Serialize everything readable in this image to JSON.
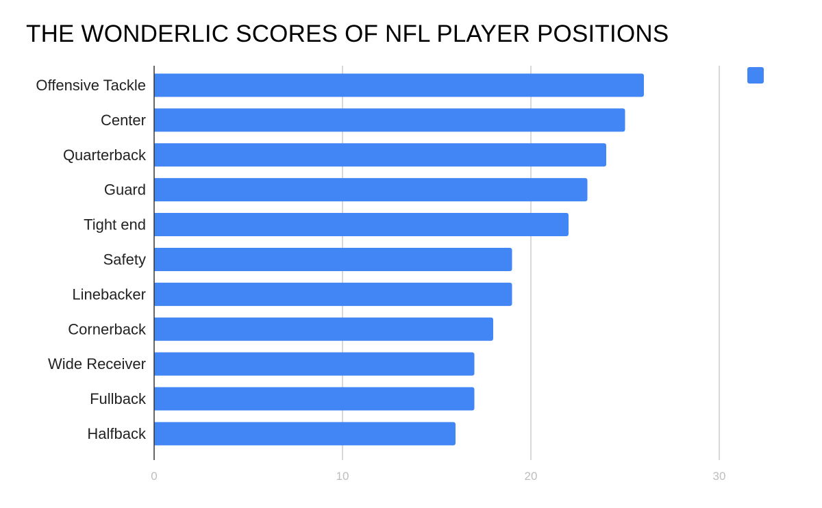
{
  "chart_data": {
    "type": "bar",
    "orientation": "horizontal",
    "title": "THE WONDERLIC SCORES OF NFL PLAYER POSITIONS",
    "xlabel": "",
    "ylabel": "",
    "categories": [
      "Offensive Tackle",
      "Center",
      "Quarterback",
      "Guard",
      "Tight end",
      "Safety",
      "Linebacker",
      "Cornerback",
      "Wide Receiver",
      "Fullback",
      "Halfback"
    ],
    "values": [
      26,
      25,
      24,
      23,
      22,
      19,
      19,
      18,
      17,
      17,
      16
    ],
    "xlim": [
      0,
      30
    ],
    "xticks": [
      0,
      10,
      20,
      30
    ],
    "grid": true,
    "legend": {
      "placement": "top-right",
      "entries": [
        ""
      ]
    },
    "colors": {
      "bar": "#4285f4",
      "grid": "#cccccc",
      "axis": "#333333",
      "tick_text": "#bdbdbd"
    }
  }
}
